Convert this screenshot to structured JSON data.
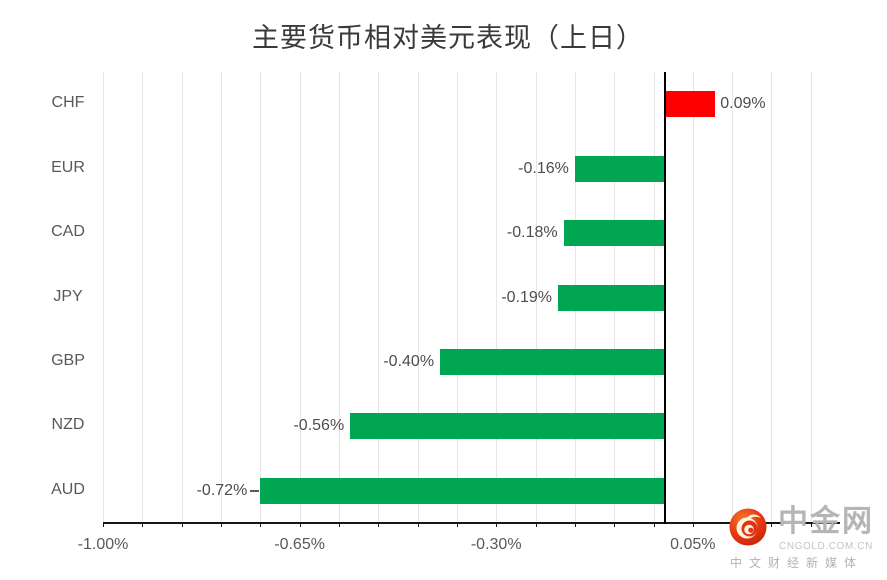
{
  "title": "主要货币相对美元表现（上日）",
  "colors": {
    "positive_bar": "#ff0000",
    "negative_bar": "#00a651",
    "axis": "#161616",
    "zero_line": "#000000",
    "grid": "#e5e5e5",
    "data_label": "#4d4d4d",
    "tick_label": "#595959",
    "logo_red": "#e23312"
  },
  "chart_data": {
    "type": "bar",
    "orientation": "horizontal",
    "title": "主要货币相对美元表现（上日）",
    "categories": [
      "CHF",
      "EUR",
      "CAD",
      "JPY",
      "GBP",
      "NZD",
      "AUD"
    ],
    "values": [
      0.09,
      -0.16,
      -0.18,
      -0.19,
      -0.4,
      -0.56,
      -0.72
    ],
    "data_labels": [
      "0.09%",
      "-0.16%",
      "-0.18%",
      "-0.19%",
      "-0.40%",
      "-0.56%",
      "-0.72%"
    ],
    "label_leader_line": [
      false,
      false,
      false,
      false,
      false,
      false,
      true
    ],
    "x_tick_labels": [
      "-1.00%",
      "-0.65%",
      "-0.30%",
      "0.05%"
    ],
    "x_tick_values": [
      -1.0,
      -0.65,
      -0.3,
      0.05
    ],
    "xlim": [
      -1.0,
      0.312
    ],
    "minor_grid_interval": 0.07,
    "grid": "vertical-minor-only",
    "legend": "none",
    "unit": "percent"
  },
  "watermark": {
    "name": "中金网",
    "domain": "CNGOLD.COM.CN",
    "tagline": "中文财经新媒体",
    "swirl_icon": "red-circle-swirl-icon"
  }
}
